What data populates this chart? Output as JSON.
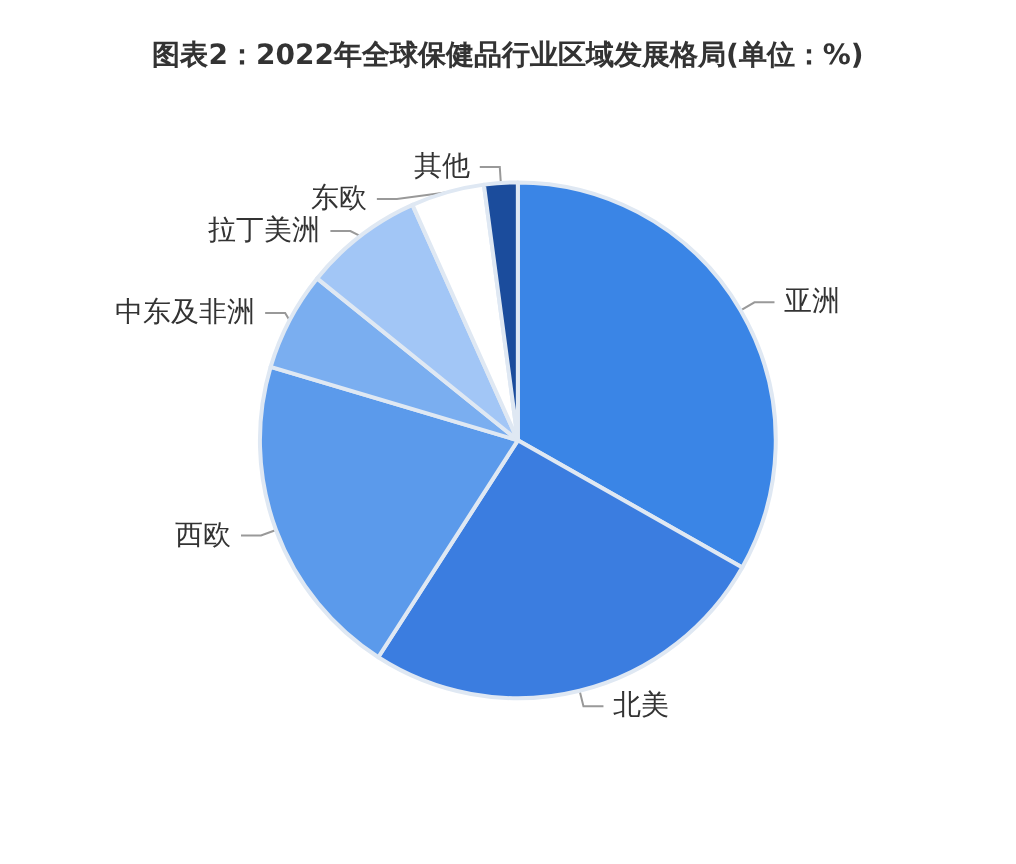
{
  "chart_data": {
    "type": "pie",
    "title": "图表2：2022年全球保健品行业区域发展格局(单位：%)",
    "categories": [
      "亚洲",
      "北美",
      "西欧",
      "中东及非洲",
      "拉丁美洲",
      "东欧",
      "其他"
    ],
    "values": [
      33.2,
      25.9,
      20.5,
      6.2,
      7.5,
      4.6,
      2.1
    ],
    "colors": [
      "#3a85e6",
      "#3b7de0",
      "#5b9aeb",
      "#7aaef0",
      "#a2c6f6",
      "#ffffff",
      "#1b4c9c"
    ],
    "legend": false
  }
}
